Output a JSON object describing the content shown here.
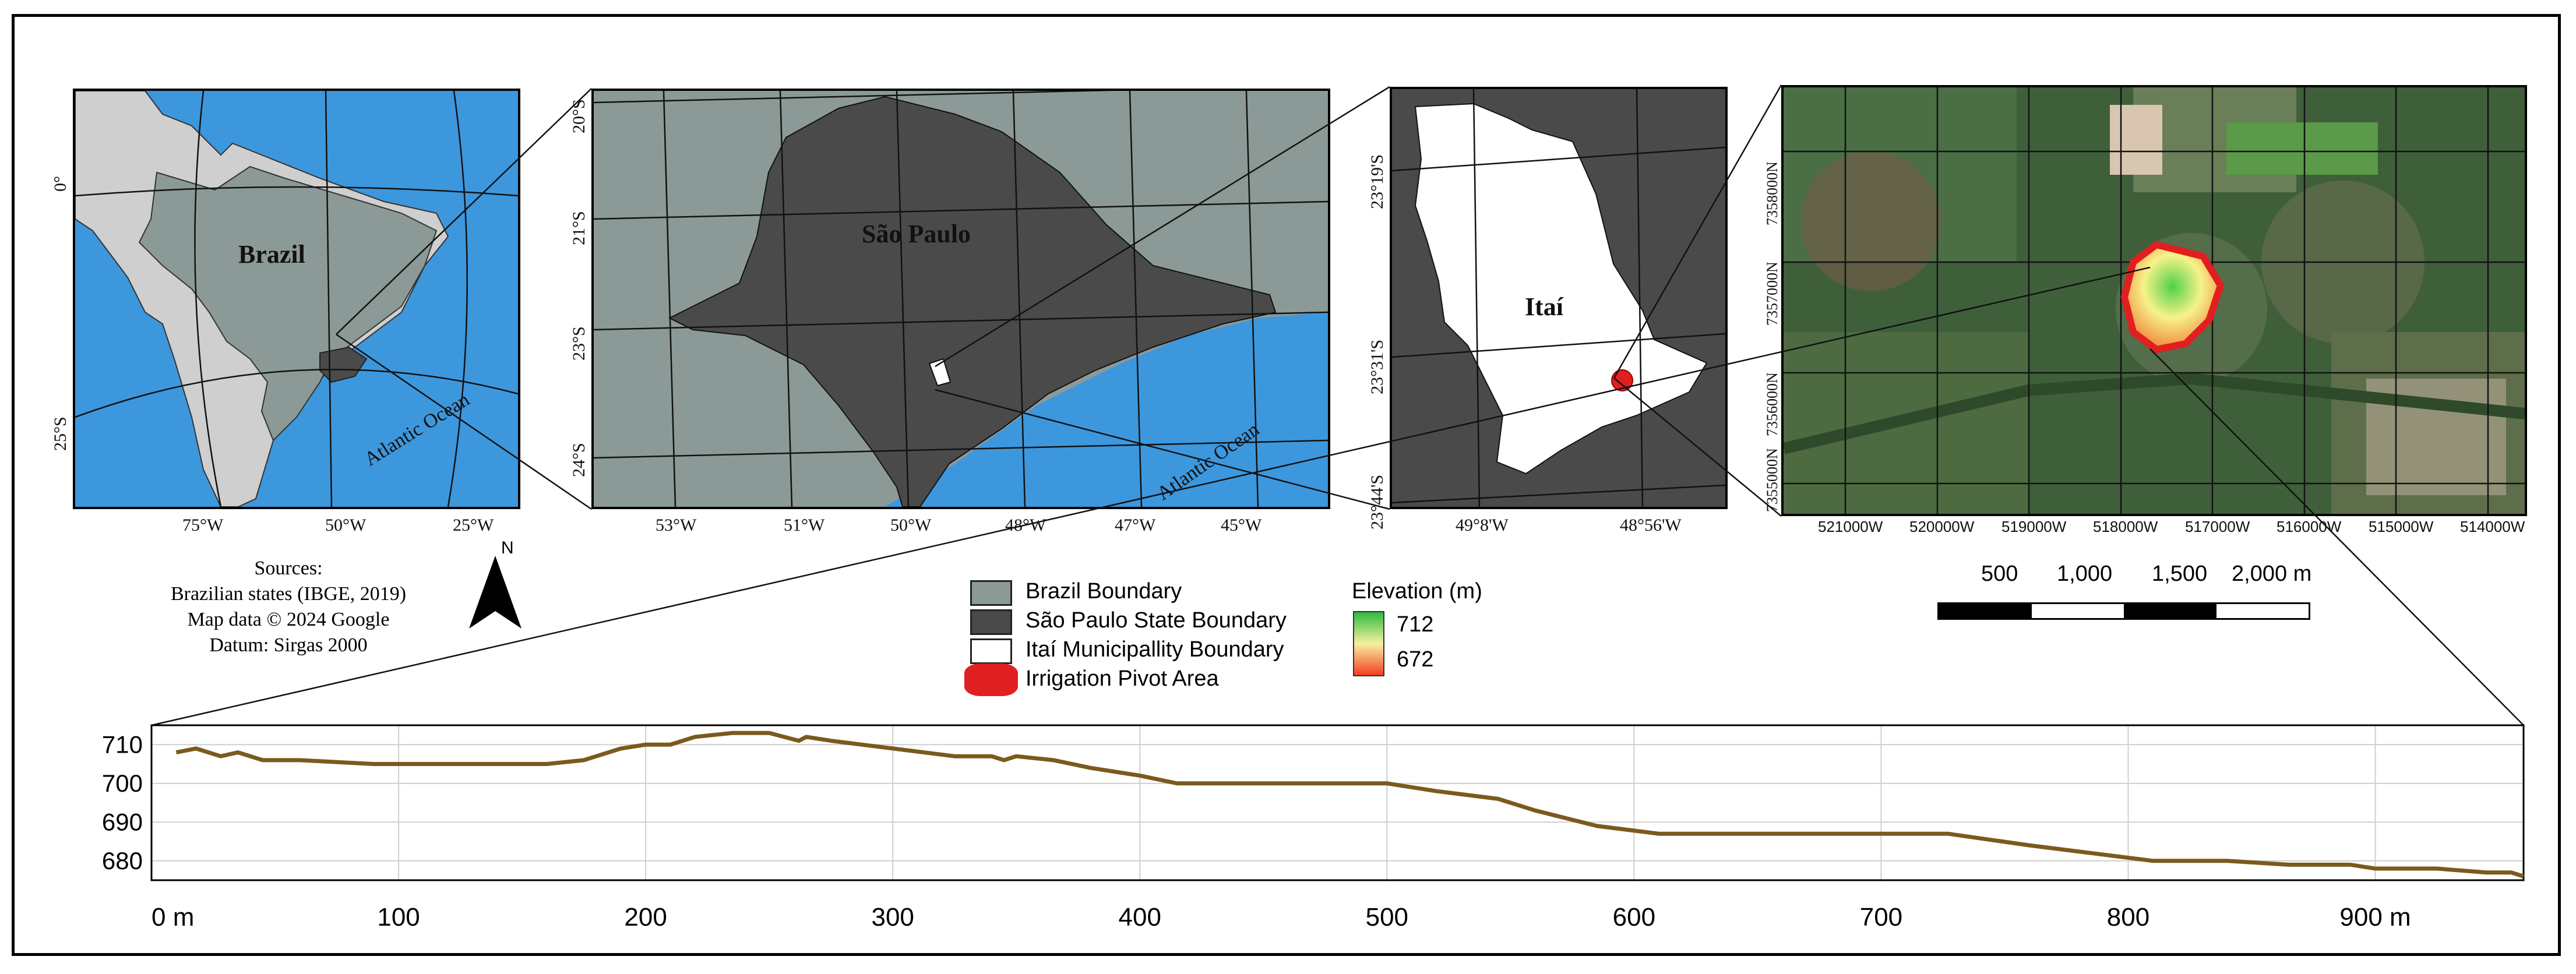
{
  "panel1": {
    "title": "Brazil",
    "ocean": "Atlantic Ocean",
    "lat_labels": [
      "0°",
      "25°S"
    ],
    "lon_labels": [
      "75°W",
      "50°W",
      "25°W"
    ],
    "colors": {
      "ocean": "#3d97dd",
      "land": "#cfcfcf",
      "brazil": "#8c9a97",
      "sp": "#4a4a4a"
    }
  },
  "panel2": {
    "title": "São Paulo",
    "ocean": "Atlantic Ocean",
    "lat_labels": [
      "20°S",
      "21°S",
      "23°S",
      "24°S"
    ],
    "lon_labels": [
      "53°W",
      "51°W",
      "50°W",
      "48°W",
      "47°W",
      "45°W"
    ]
  },
  "panel3": {
    "title": "Itaí",
    "lat_labels": [
      "23°19'S",
      "23°31'S",
      "23°44'S"
    ],
    "lon_labels": [
      "49°8'W",
      "48°56'W"
    ]
  },
  "panel4": {
    "lat_labels": [
      "7358000N",
      "7357000N",
      "7356000N",
      "7355000N"
    ],
    "lon_labels": [
      "521000W",
      "520000W",
      "519000W",
      "518000W",
      "517000W",
      "516000W",
      "515000W",
      "514000W"
    ]
  },
  "north": "N",
  "sources": {
    "title": "Sources:",
    "lines": [
      "Brazilian states (IBGE, 2019)",
      "Map data © 2024 Google",
      "Datum: Sirgas 2000"
    ]
  },
  "legend": {
    "items": [
      {
        "label": "Brazil Boundary",
        "color": "#8c9a97"
      },
      {
        "label": "São Paulo State Boundary",
        "color": "#4a4a4a"
      },
      {
        "label": "Itaí Municipallity Boundary",
        "color": "#ffffff"
      },
      {
        "label": "Irrigation Pivot Area",
        "color": "#e02020"
      }
    ],
    "elevation_title": "Elevation (m)",
    "elevation_max": "712",
    "elevation_min": "672"
  },
  "scalebar": {
    "labels": [
      "500",
      "1,000",
      "1,500",
      "2,000 m"
    ]
  },
  "chart_data": {
    "type": "line",
    "title": "",
    "xlabel": "",
    "ylabel": "",
    "xlim": [
      0,
      960
    ],
    "ylim": [
      675,
      715
    ],
    "x_tick_labels": [
      "0 m",
      "100",
      "200",
      "300",
      "400",
      "500",
      "600",
      "700",
      "800",
      "900 m"
    ],
    "x_ticks": [
      0,
      100,
      200,
      300,
      400,
      500,
      600,
      700,
      800,
      900
    ],
    "y_tick_labels": [
      "710",
      "700",
      "690",
      "680"
    ],
    "y_ticks": [
      710,
      700,
      690,
      680
    ],
    "grid": true,
    "series": [
      {
        "color": "#7a5a1e",
        "x": [
          10,
          18,
          28,
          35,
          45,
          60,
          90,
          120,
          160,
          175,
          190,
          200,
          210,
          220,
          235,
          250,
          262,
          265,
          275,
          300,
          325,
          340,
          345,
          350,
          365,
          380,
          400,
          415,
          440,
          470,
          500,
          520,
          545,
          560,
          585,
          610,
          650,
          700,
          727,
          760,
          785,
          810,
          840,
          865,
          890,
          900,
          925,
          945,
          955,
          960
        ],
        "y": [
          708,
          709,
          707,
          708,
          706,
          706,
          705,
          705,
          705,
          706,
          709,
          710,
          710,
          712,
          713,
          713,
          711,
          712,
          711,
          709,
          707,
          707,
          706,
          707,
          706,
          704,
          702,
          700,
          700,
          700,
          700,
          698,
          696,
          693,
          689,
          687,
          687,
          687,
          687,
          684,
          682,
          680,
          680,
          679,
          679,
          678,
          678,
          677,
          677,
          676
        ]
      }
    ]
  }
}
